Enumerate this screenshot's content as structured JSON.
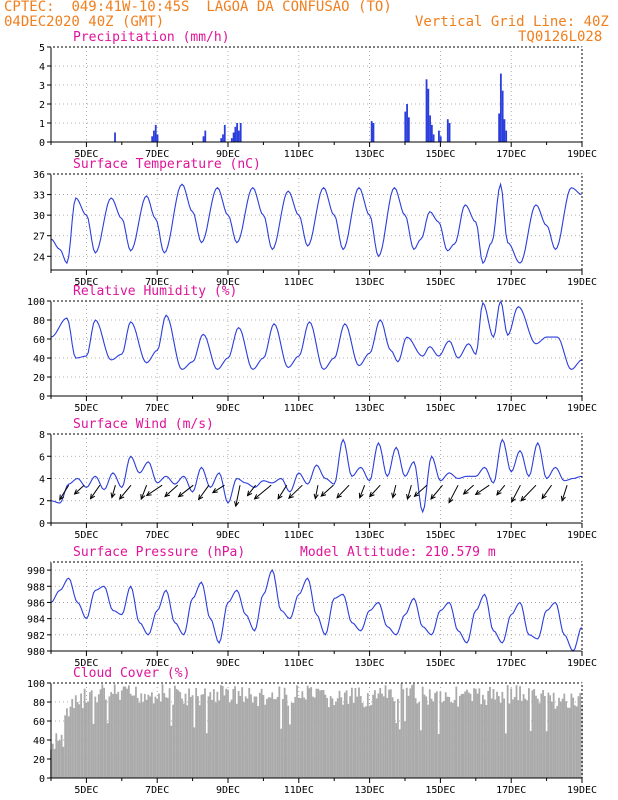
{
  "header": {
    "source": "CPTEC:",
    "coords": "049:41W-10:45S",
    "location": "LAGOA DA CONFUSAO (TO)",
    "run": "04DEC2020 40Z (GMT)",
    "grid_line": "Vertical Grid Line: 40Z",
    "code": "TQ0126L028"
  },
  "colors": {
    "header": "#f07f1e",
    "title": "#e0149a",
    "series": "#2b3ddb",
    "cloud": "#aaaaaa",
    "grid": "#999999",
    "arrow": "#000000"
  },
  "model_altitude": "Model Altitude: 210.579 m",
  "x_ticks": [
    "5DEC",
    "7DEC",
    "9DEC",
    "11DEC",
    "13DEC",
    "15DEC",
    "17DEC",
    "19DEC"
  ],
  "chart_data": [
    {
      "type": "bar",
      "title": "Precipitation (mm/h)",
      "units": "mm/h",
      "x_unit": "days after 04DEC2020 00Z",
      "ylim": [
        0,
        5
      ],
      "yticks": [
        0,
        1,
        2,
        3,
        4,
        5
      ],
      "points": [
        [
          1.8,
          0.5
        ],
        [
          2.85,
          0.3
        ],
        [
          2.9,
          0.6
        ],
        [
          2.95,
          0.9
        ],
        [
          3.0,
          0.4
        ],
        [
          4.3,
          0.3
        ],
        [
          4.35,
          0.6
        ],
        [
          4.8,
          0.2
        ],
        [
          4.85,
          0.4
        ],
        [
          4.9,
          0.9
        ],
        [
          5.1,
          0.2
        ],
        [
          5.15,
          0.5
        ],
        [
          5.2,
          0.8
        ],
        [
          5.25,
          1.0
        ],
        [
          5.3,
          0.6
        ],
        [
          5.35,
          1.0
        ],
        [
          9.05,
          1.1
        ],
        [
          9.1,
          1.0
        ],
        [
          10.0,
          1.6
        ],
        [
          10.05,
          2.0
        ],
        [
          10.1,
          1.3
        ],
        [
          10.6,
          3.3
        ],
        [
          10.65,
          2.8
        ],
        [
          10.7,
          1.4
        ],
        [
          10.75,
          0.9
        ],
        [
          10.8,
          0.4
        ],
        [
          10.95,
          0.6
        ],
        [
          11.0,
          0.3
        ],
        [
          11.2,
          1.2
        ],
        [
          11.25,
          1.0
        ],
        [
          12.65,
          1.5
        ],
        [
          12.7,
          3.6
        ],
        [
          12.75,
          2.7
        ],
        [
          12.8,
          1.2
        ],
        [
          12.85,
          0.6
        ]
      ]
    },
    {
      "type": "line",
      "title": "Surface Temperature (nC)",
      "units": "nC",
      "x_unit": "days after 04DEC2020 00Z",
      "ylim": [
        22,
        36
      ],
      "yticks": [
        24,
        27,
        30,
        33,
        36
      ],
      "peaks": [
        [
          0.0,
          26.5
        ],
        [
          0.25,
          25.0
        ],
        [
          0.45,
          23.0
        ],
        [
          0.7,
          32.5
        ],
        [
          1.0,
          30.0
        ],
        [
          1.25,
          24.5
        ],
        [
          1.7,
          32.5
        ],
        [
          2.0,
          29.5
        ],
        [
          2.25,
          24.8
        ],
        [
          2.7,
          32.8
        ],
        [
          2.95,
          29.5
        ],
        [
          3.2,
          24.5
        ],
        [
          3.7,
          34.5
        ],
        [
          4.0,
          30.5
        ],
        [
          4.25,
          26.0
        ],
        [
          4.7,
          34.0
        ],
        [
          5.0,
          30.0
        ],
        [
          5.25,
          26.0
        ],
        [
          5.7,
          34.0
        ],
        [
          6.0,
          30.0
        ],
        [
          6.25,
          25.0
        ],
        [
          6.7,
          33.5
        ],
        [
          7.0,
          30.0
        ],
        [
          7.25,
          25.5
        ],
        [
          7.7,
          34.0
        ],
        [
          8.0,
          30.0
        ],
        [
          8.25,
          25.0
        ],
        [
          8.7,
          34.0
        ],
        [
          9.0,
          30.0
        ],
        [
          9.25,
          24.0
        ],
        [
          9.7,
          34.0
        ],
        [
          10.0,
          30.0
        ],
        [
          10.25,
          25.0
        ],
        [
          10.45,
          26.5
        ],
        [
          10.7,
          30.5
        ],
        [
          10.95,
          29.0
        ],
        [
          11.2,
          24.8
        ],
        [
          11.4,
          25.8
        ],
        [
          11.7,
          31.5
        ],
        [
          12.0,
          29.0
        ],
        [
          12.2,
          23.0
        ],
        [
          12.45,
          26.0
        ],
        [
          12.7,
          34.5
        ],
        [
          12.9,
          26.0
        ],
        [
          13.25,
          23.0
        ],
        [
          13.7,
          31.5
        ],
        [
          14.0,
          28.5
        ],
        [
          14.25,
          25.0
        ],
        [
          14.7,
          34.0
        ],
        [
          15.0,
          33.0
        ]
      ]
    },
    {
      "type": "line",
      "title": "Relative Humidity (%)",
      "units": "%",
      "x_unit": "days after 04DEC2020 00Z",
      "ylim": [
        0,
        100
      ],
      "yticks": [
        0,
        20,
        40,
        60,
        80,
        100
      ],
      "peaks": [
        [
          0.0,
          62.0
        ],
        [
          0.45,
          82.0
        ],
        [
          0.7,
          40.0
        ],
        [
          1.0,
          42.0
        ],
        [
          1.25,
          80.0
        ],
        [
          1.7,
          38.0
        ],
        [
          2.0,
          44.0
        ],
        [
          2.25,
          78.0
        ],
        [
          2.7,
          35.0
        ],
        [
          3.0,
          48.0
        ],
        [
          3.25,
          85.0
        ],
        [
          3.7,
          28.0
        ],
        [
          4.0,
          36.0
        ],
        [
          4.3,
          65.0
        ],
        [
          4.7,
          28.0
        ],
        [
          5.0,
          40.0
        ],
        [
          5.3,
          72.0
        ],
        [
          5.7,
          28.0
        ],
        [
          6.0,
          40.0
        ],
        [
          6.3,
          76.0
        ],
        [
          6.7,
          30.0
        ],
        [
          7.0,
          42.0
        ],
        [
          7.3,
          78.0
        ],
        [
          7.7,
          28.0
        ],
        [
          8.0,
          40.0
        ],
        [
          8.3,
          76.0
        ],
        [
          8.7,
          32.0
        ],
        [
          9.0,
          45.0
        ],
        [
          9.3,
          80.0
        ],
        [
          9.6,
          48.0
        ],
        [
          9.8,
          36.0
        ],
        [
          10.05,
          62.0
        ],
        [
          10.5,
          42.0
        ],
        [
          10.7,
          52.0
        ],
        [
          10.95,
          42.0
        ],
        [
          11.25,
          58.0
        ],
        [
          11.5,
          40.0
        ],
        [
          11.8,
          55.0
        ],
        [
          12.0,
          44.0
        ],
        [
          12.2,
          98.0
        ],
        [
          12.5,
          62.0
        ],
        [
          12.7,
          100.0
        ],
        [
          12.9,
          64.0
        ],
        [
          13.2,
          94.0
        ],
        [
          13.7,
          55.0
        ],
        [
          14.0,
          62.0
        ],
        [
          14.3,
          62.0
        ],
        [
          14.7,
          28.0
        ],
        [
          15.0,
          38.0
        ]
      ]
    },
    {
      "type": "line",
      "title": "Surface Wind (m/s)",
      "units": "m/s",
      "x_unit": "days after 04DEC2020 00Z",
      "ylim": [
        0,
        8
      ],
      "yticks": [
        0,
        2,
        4,
        6,
        8
      ],
      "peaks": [
        [
          0.0,
          2.0
        ],
        [
          0.25,
          1.8
        ],
        [
          0.5,
          3.5
        ],
        [
          0.75,
          4.0
        ],
        [
          1.0,
          3.2
        ],
        [
          1.25,
          4.2
        ],
        [
          1.5,
          3.0
        ],
        [
          1.75,
          4.5
        ],
        [
          2.0,
          3.2
        ],
        [
          2.25,
          6.0
        ],
        [
          2.5,
          4.5
        ],
        [
          2.75,
          5.5
        ],
        [
          3.0,
          3.6
        ],
        [
          3.25,
          4.2
        ],
        [
          3.5,
          3.5
        ],
        [
          3.75,
          4.2
        ],
        [
          4.0,
          2.8
        ],
        [
          4.25,
          5.0
        ],
        [
          4.5,
          3.2
        ],
        [
          4.75,
          4.5
        ],
        [
          5.0,
          1.8
        ],
        [
          5.25,
          4.0
        ],
        [
          5.5,
          3.6
        ],
        [
          5.75,
          3.2
        ],
        [
          6.0,
          3.8
        ],
        [
          6.25,
          3.6
        ],
        [
          6.5,
          4.0
        ],
        [
          6.75,
          2.8
        ],
        [
          7.0,
          4.5
        ],
        [
          7.25,
          3.5
        ],
        [
          7.5,
          5.2
        ],
        [
          7.75,
          4.0
        ],
        [
          8.0,
          3.5
        ],
        [
          8.25,
          7.5
        ],
        [
          8.5,
          4.2
        ],
        [
          8.75,
          5.0
        ],
        [
          9.0,
          3.8
        ],
        [
          9.25,
          7.2
        ],
        [
          9.5,
          4.2
        ],
        [
          9.75,
          6.8
        ],
        [
          10.0,
          4.2
        ],
        [
          10.25,
          5.5
        ],
        [
          10.5,
          1.0
        ],
        [
          10.75,
          6.0
        ],
        [
          11.0,
          3.8
        ],
        [
          11.25,
          4.5
        ],
        [
          11.5,
          4.0
        ],
        [
          11.75,
          4.2
        ],
        [
          12.0,
          4.2
        ],
        [
          12.25,
          5.0
        ],
        [
          12.5,
          3.6
        ],
        [
          12.75,
          7.5
        ],
        [
          13.0,
          4.6
        ],
        [
          13.25,
          6.5
        ],
        [
          13.5,
          4.2
        ],
        [
          13.75,
          7.2
        ],
        [
          14.0,
          4.0
        ],
        [
          14.25,
          5.0
        ],
        [
          14.5,
          3.8
        ],
        [
          14.75,
          4.0
        ],
        [
          15.0,
          4.2
        ]
      ]
    },
    {
      "type": "line",
      "title": "Surface Pressure (hPa)",
      "units": "hPa",
      "x_unit": "days after 04DEC2020 00Z",
      "ylim": [
        980,
        991
      ],
      "yticks": [
        980,
        982,
        984,
        986,
        988,
        990
      ],
      "peaks": [
        [
          0.0,
          986.0
        ],
        [
          0.25,
          987.5
        ],
        [
          0.5,
          989.0
        ],
        [
          0.75,
          986.0
        ],
        [
          1.0,
          984.0
        ],
        [
          1.25,
          987.5
        ],
        [
          1.5,
          988.0
        ],
        [
          1.75,
          985.0
        ],
        [
          2.0,
          984.5
        ],
        [
          2.25,
          988.0
        ],
        [
          2.5,
          983.5
        ],
        [
          2.75,
          982.0
        ],
        [
          3.0,
          985.0
        ],
        [
          3.25,
          987.5
        ],
        [
          3.5,
          983.5
        ],
        [
          3.75,
          982.0
        ],
        [
          4.0,
          986.5
        ],
        [
          4.25,
          988.5
        ],
        [
          4.5,
          984.0
        ],
        [
          4.75,
          981.0
        ],
        [
          5.0,
          986.0
        ],
        [
          5.25,
          987.5
        ],
        [
          5.5,
          984.5
        ],
        [
          5.75,
          982.5
        ],
        [
          6.0,
          987.0
        ],
        [
          6.25,
          990.0
        ],
        [
          6.5,
          985.0
        ],
        [
          6.75,
          984.0
        ],
        [
          7.0,
          987.0
        ],
        [
          7.25,
          989.0
        ],
        [
          7.5,
          984.5
        ],
        [
          7.75,
          982.0
        ],
        [
          8.0,
          986.5
        ],
        [
          8.25,
          987.0
        ],
        [
          8.5,
          983.5
        ],
        [
          8.75,
          982.5
        ],
        [
          9.0,
          985.0
        ],
        [
          9.25,
          986.0
        ],
        [
          9.5,
          983.0
        ],
        [
          9.75,
          982.0
        ],
        [
          10.0,
          984.5
        ],
        [
          10.25,
          986.5
        ],
        [
          10.5,
          983.0
        ],
        [
          10.75,
          982.0
        ],
        [
          11.0,
          985.0
        ],
        [
          11.25,
          986.0
        ],
        [
          11.5,
          982.5
        ],
        [
          11.75,
          981.0
        ],
        [
          12.0,
          985.0
        ],
        [
          12.25,
          987.0
        ],
        [
          12.5,
          982.5
        ],
        [
          12.75,
          981.0
        ],
        [
          13.0,
          984.5
        ],
        [
          13.25,
          986.0
        ],
        [
          13.5,
          982.0
        ],
        [
          13.75,
          981.5
        ],
        [
          14.0,
          985.0
        ],
        [
          14.25,
          986.0
        ],
        [
          14.5,
          982.0
        ],
        [
          14.75,
          980.0
        ],
        [
          15.0,
          983.0
        ]
      ]
    },
    {
      "type": "bar",
      "title": "Cloud Cover (%)",
      "units": "%",
      "x_unit": "days after 04DEC2020 00Z",
      "ylim": [
        0,
        100
      ],
      "yticks": [
        0,
        20,
        40,
        60,
        80,
        100
      ],
      "peaks": [
        [
          0.0,
          40
        ],
        [
          0.25,
          60
        ],
        [
          0.5,
          80
        ],
        [
          0.75,
          90
        ],
        [
          1.0,
          95
        ],
        [
          1.5,
          100
        ],
        [
          2.0,
          98
        ],
        [
          3.0,
          100
        ],
        [
          4.0,
          96
        ],
        [
          5.0,
          100
        ],
        [
          6.0,
          95
        ],
        [
          7.0,
          98
        ],
        [
          8.0,
          94
        ],
        [
          9.0,
          96
        ],
        [
          10.0,
          100
        ],
        [
          11.0,
          98
        ],
        [
          12.0,
          96
        ],
        [
          13.0,
          100
        ],
        [
          14.0,
          95
        ],
        [
          15.0,
          90
        ]
      ]
    }
  ]
}
